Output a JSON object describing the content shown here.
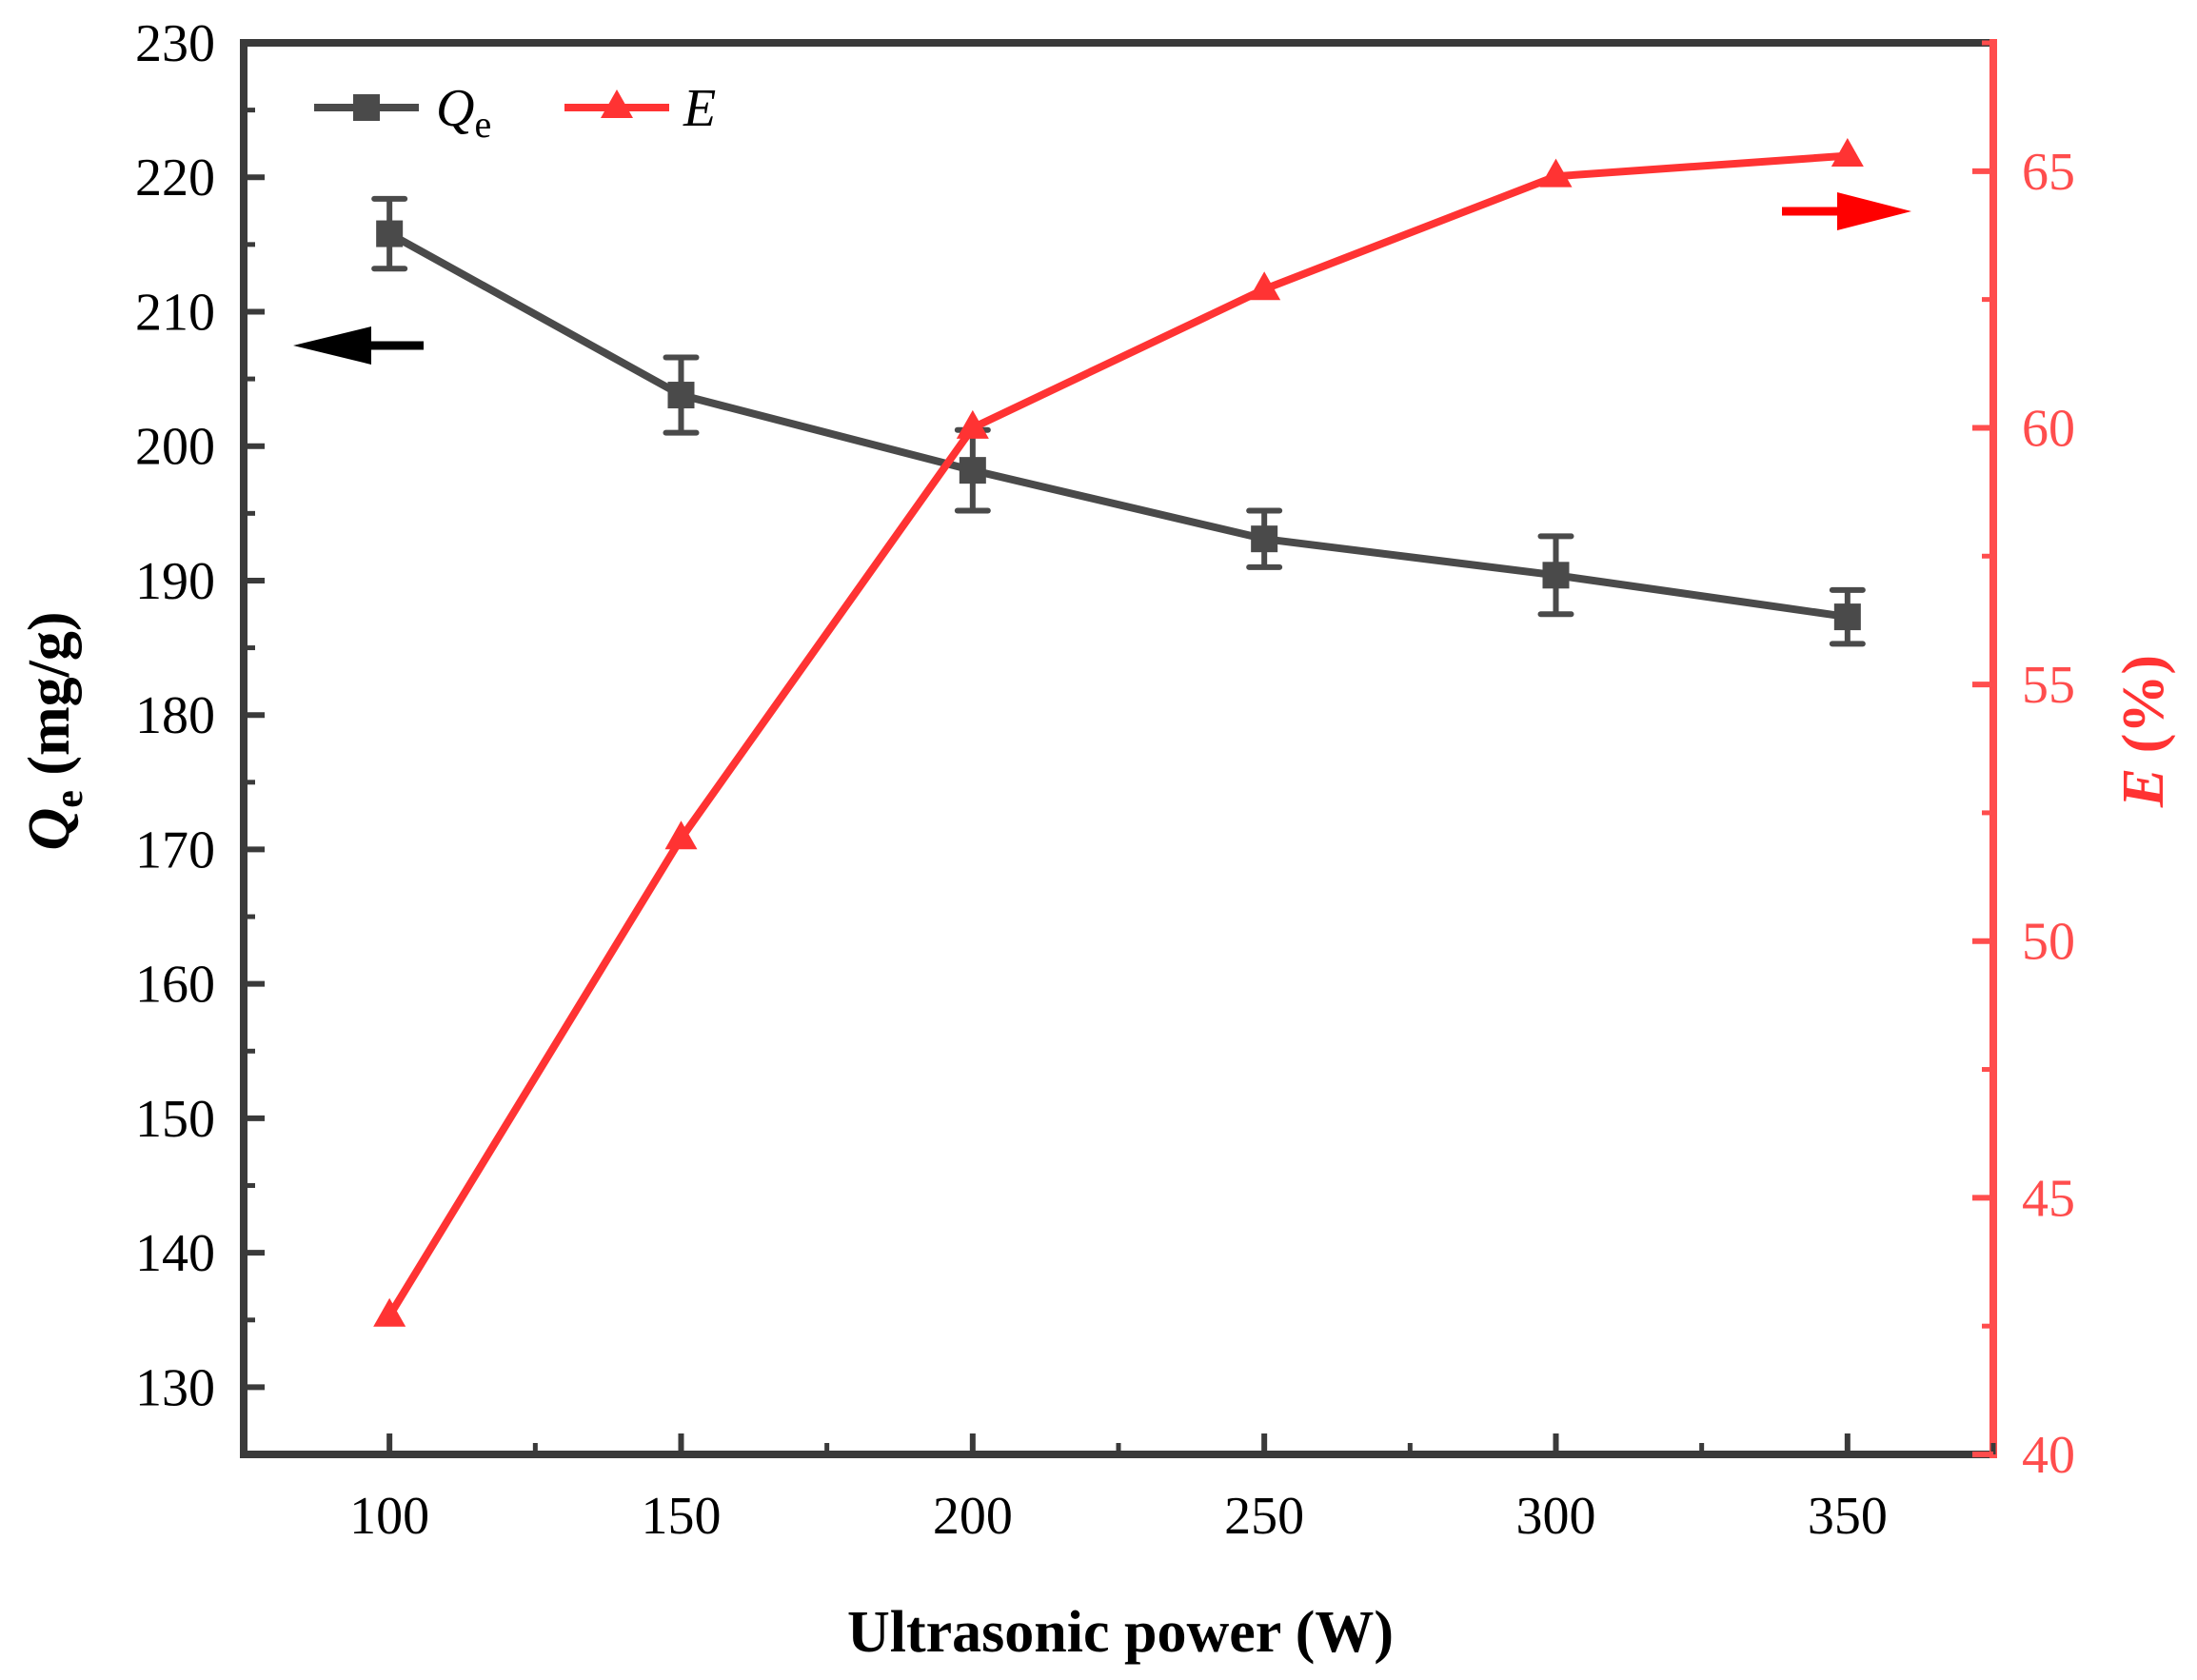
{
  "chart_data": {
    "type": "line",
    "xlabel": "Ultrasonic power (W)",
    "ylabel_left": {
      "main": "Q",
      "sub": "e",
      "rest": " (mg/g)"
    },
    "ylabel_right": {
      "main": "E",
      "rest": " (%)"
    },
    "x": [
      100,
      150,
      200,
      250,
      300,
      350
    ],
    "xlim": [
      75,
      375
    ],
    "xticks": [
      "100",
      "150",
      "200",
      "250",
      "300",
      "350"
    ],
    "ylim_left": [
      125,
      230
    ],
    "yticks_left": [
      "130",
      "140",
      "150",
      "160",
      "170",
      "180",
      "190",
      "200",
      "210",
      "220",
      "230"
    ],
    "ylim_right": [
      40,
      67.5
    ],
    "yticks_right": [
      "40",
      "45",
      "50",
      "55",
      "60",
      "65"
    ],
    "series": [
      {
        "name": "Q",
        "name_sub": "e",
        "axis": "left",
        "marker": "square",
        "color": "#4a4a4a",
        "values": [
          215.8,
          203.8,
          198.2,
          193.1,
          190.4,
          187.3
        ],
        "errors": [
          2.6,
          2.8,
          3.0,
          2.1,
          2.9,
          2.0
        ]
      },
      {
        "name": "E",
        "axis": "right",
        "marker": "triangle",
        "color": "#ff3333",
        "values": [
          42.7,
          52.0,
          60.0,
          62.7,
          64.9,
          65.3
        ]
      }
    ],
    "annotations": [
      {
        "type": "arrow",
        "direction": "left",
        "color": "#000000",
        "meaning": "Qe uses left axis"
      },
      {
        "type": "arrow",
        "direction": "right",
        "color": "#ff0000",
        "meaning": "E uses right axis"
      }
    ],
    "grid": false,
    "legend_position": "top-left"
  }
}
